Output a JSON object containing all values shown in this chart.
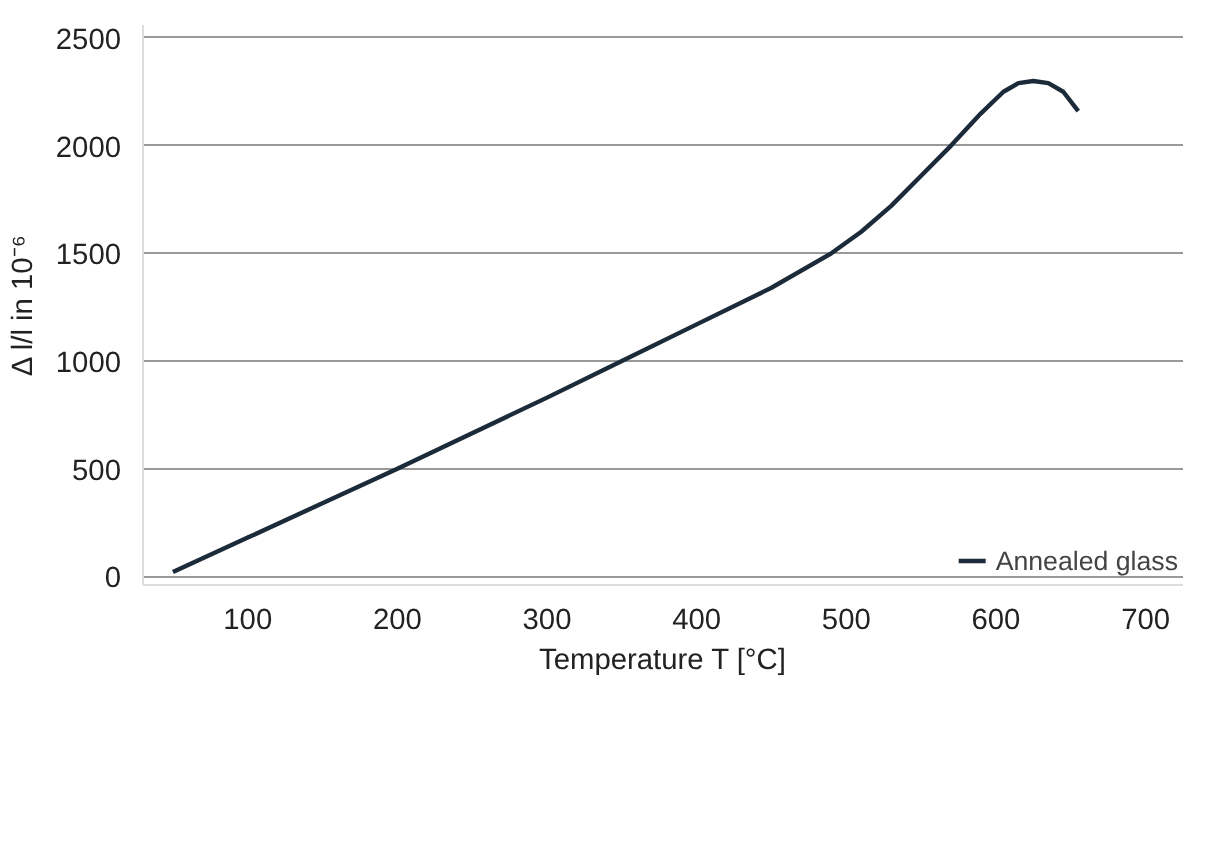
{
  "chart_data": {
    "type": "line",
    "xlabel": "Temperature T [°C]",
    "ylabel": "Δ l/l in 10⁻⁶",
    "xlim": [
      30,
      725
    ],
    "xticks": [
      100,
      200,
      300,
      400,
      500,
      600,
      700
    ],
    "ylim": [
      -40,
      2560
    ],
    "yticks": [
      0,
      500,
      1000,
      1500,
      2000,
      2500
    ],
    "grid": "y",
    "legend": "bottom right",
    "series": [
      {
        "name": "Annealed glass",
        "color": "#1c2b3a",
        "x": [
          50,
          100,
          200,
          300,
          350,
          400,
          450,
          490,
          510,
          530,
          550,
          570,
          590,
          605,
          615,
          625,
          635,
          645,
          655
        ],
        "values": [
          20,
          180,
          500,
          830,
          1000,
          1170,
          1340,
          1500,
          1600,
          1720,
          1860,
          2000,
          2150,
          2250,
          2290,
          2300,
          2290,
          2250,
          2160
        ]
      }
    ]
  }
}
